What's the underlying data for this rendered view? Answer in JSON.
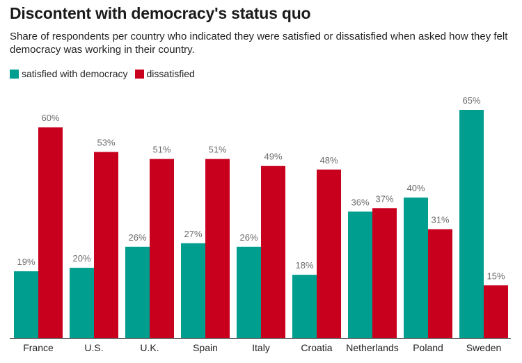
{
  "header": {
    "title": "Discontent with democracy's status quo",
    "subtitle": "Share of respondents per country who indicated they were satisfied or dissatisfied when asked how they felt democracy was working in their country."
  },
  "colors": {
    "satisfied": "#009e8f",
    "dissatisfied": "#c8001e",
    "axis": "#333333"
  },
  "chart_data": {
    "type": "bar",
    "title": "Discontent with democracy's status quo",
    "xlabel": "",
    "ylabel": "",
    "ylim": [
      0,
      65
    ],
    "grid": false,
    "legend_position": "top-left",
    "value_suffix": "%",
    "categories": [
      "France",
      "U.S.",
      "U.K.",
      "Spain",
      "Italy",
      "Croatia",
      "Netherlands",
      "Poland",
      "Sweden"
    ],
    "series": [
      {
        "name": "satisfied with democracy",
        "values": [
          19,
          20,
          26,
          27,
          26,
          18,
          36,
          40,
          65
        ]
      },
      {
        "name": "dissatisfied",
        "values": [
          60,
          53,
          51,
          51,
          49,
          48,
          37,
          31,
          15
        ]
      }
    ]
  }
}
